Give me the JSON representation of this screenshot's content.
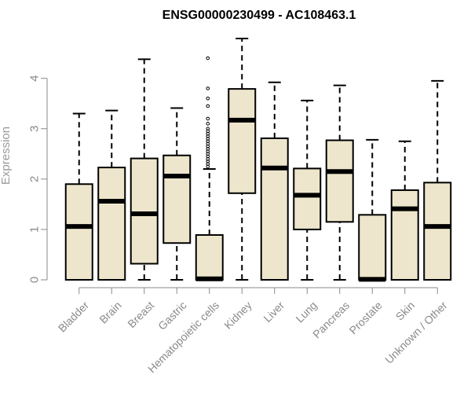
{
  "chart_data": {
    "type": "box",
    "title": "ENSG00000230499 - AC108463.1",
    "xlabel": "",
    "ylabel": "Expression",
    "ylim": [
      0,
      4.9
    ],
    "yticks": [
      0,
      1,
      2,
      3,
      4
    ],
    "grid": false,
    "box_fill": "#ede6cc",
    "categories": [
      "Bladder",
      "Brain",
      "Breast",
      "Gastric",
      "Hematopoietic cells",
      "Kidney",
      "Liver",
      "Lung",
      "Pancreas",
      "Prostate",
      "Skin",
      "Unknown / Other"
    ],
    "boxes": [
      {
        "min": 0,
        "q1": 0,
        "median": 1.06,
        "q3": 1.9,
        "max": 3.3,
        "outliers": []
      },
      {
        "min": 0,
        "q1": 0,
        "median": 1.56,
        "q3": 2.23,
        "max": 3.36,
        "outliers": []
      },
      {
        "min": 0,
        "q1": 0.32,
        "median": 1.31,
        "q3": 2.41,
        "max": 4.38,
        "outliers": []
      },
      {
        "min": 0,
        "q1": 0.73,
        "median": 2.06,
        "q3": 2.47,
        "max": 3.41,
        "outliers": []
      },
      {
        "min": 0,
        "q1": 0,
        "median": 0.02,
        "q3": 0.89,
        "max": 2.2,
        "outliers": [
          2.25,
          2.3,
          2.35,
          2.4,
          2.45,
          2.5,
          2.55,
          2.6,
          2.65,
          2.7,
          2.75,
          2.8,
          2.85,
          2.9,
          2.95,
          3.0,
          3.1,
          3.2,
          3.45,
          3.6,
          3.8,
          4.4
        ]
      },
      {
        "min": 0,
        "q1": 1.72,
        "median": 3.17,
        "q3": 3.79,
        "max": 4.79,
        "outliers": []
      },
      {
        "min": 0,
        "q1": 0,
        "median": 2.22,
        "q3": 2.81,
        "max": 3.92,
        "outliers": []
      },
      {
        "min": 0,
        "q1": 1.0,
        "median": 1.68,
        "q3": 2.21,
        "max": 3.56,
        "outliers": []
      },
      {
        "min": 0,
        "q1": 1.15,
        "median": 2.15,
        "q3": 2.77,
        "max": 3.86,
        "outliers": []
      },
      {
        "min": 0,
        "q1": 0,
        "median": 0.01,
        "q3": 1.29,
        "max": 2.78,
        "outliers": []
      },
      {
        "min": 0,
        "q1": 0,
        "median": 1.41,
        "q3": 1.78,
        "max": 2.75,
        "outliers": []
      },
      {
        "min": 0,
        "q1": 0,
        "median": 1.06,
        "q3": 1.93,
        "max": 3.95,
        "outliers": []
      }
    ]
  }
}
